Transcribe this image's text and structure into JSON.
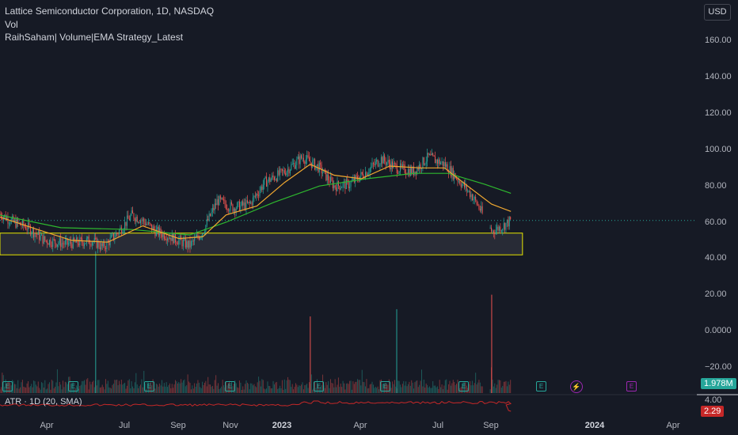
{
  "legend": {
    "title": "Lattice Semiconductor Corporation, 1D, NASDAQ",
    "vol": "Vol",
    "strategy": "RaihSaham| Volume|EMA Strategy_Latest"
  },
  "currency": "USD",
  "price_axis": [
    "160.00",
    "140.00",
    "120.00",
    "100.00",
    "80.00",
    "60.00",
    "40.00",
    "20.00",
    "0.0000",
    "−20.00"
  ],
  "atr_axis": "4.00",
  "badges": {
    "volume": "1.978M",
    "atr": "2.29"
  },
  "atr_legend": "ATR · 1D (20, SMA)",
  "time_axis": [
    "Apr",
    "Jul",
    "Sep",
    "Nov",
    "2023",
    "Apr",
    "Jul",
    "Sep",
    "2024",
    "Apr"
  ],
  "earnings_icon": "E",
  "dividend_icon": "lightning-icon",
  "colors": {
    "up": "#26a69a",
    "down": "#ef5350",
    "ema_fast": "#f0a830",
    "ema_slow": "#2eb82e",
    "zone": "#e6e600",
    "atr": "#c62828",
    "volume_badge": "#26a69a",
    "atr_badge": "#c62828"
  },
  "chart_data": {
    "type": "candlestick",
    "x_range": [
      "2022-02",
      "2024-05"
    ],
    "ylim": [
      -20,
      170
    ],
    "price_path": [
      [
        "2022-02-10",
        65
      ],
      [
        "2022-03-01",
        60
      ],
      [
        "2022-03-20",
        57
      ],
      [
        "2022-04-10",
        50
      ],
      [
        "2022-05-10",
        48
      ],
      [
        "2022-06-10",
        50
      ],
      [
        "2022-06-25",
        46
      ],
      [
        "2022-07-15",
        55
      ],
      [
        "2022-08-01",
        64
      ],
      [
        "2022-08-15",
        61
      ],
      [
        "2022-09-01",
        55
      ],
      [
        "2022-09-20",
        52
      ],
      [
        "2022-10-15",
        47
      ],
      [
        "2022-11-01",
        55
      ],
      [
        "2022-11-20",
        72
      ],
      [
        "2022-12-10",
        68
      ],
      [
        "2023-01-01",
        70
      ],
      [
        "2023-01-20",
        82
      ],
      [
        "2023-02-15",
        88
      ],
      [
        "2023-03-10",
        96
      ],
      [
        "2023-04-01",
        90
      ],
      [
        "2023-04-20",
        80
      ],
      [
        "2023-05-10",
        81
      ],
      [
        "2023-06-01",
        88
      ],
      [
        "2023-06-20",
        95
      ],
      [
        "2023-07-10",
        90
      ],
      [
        "2023-08-01",
        88
      ],
      [
        "2023-08-20",
        96
      ],
      [
        "2023-09-10",
        92
      ],
      [
        "2023-09-25",
        85
      ],
      [
        "2023-10-15",
        75
      ],
      [
        "2023-10-25",
        68
      ],
      [
        "2023-11-10",
        55
      ],
      [
        "2023-11-25",
        58
      ],
      [
        "2023-12-05",
        61
      ]
    ],
    "ema_fast": [
      [
        "2022-02-10",
        63
      ],
      [
        "2022-04-01",
        56
      ],
      [
        "2022-05-15",
        50
      ],
      [
        "2022-07-01",
        49
      ],
      [
        "2022-08-15",
        58
      ],
      [
        "2022-10-01",
        51
      ],
      [
        "2022-11-01",
        52
      ],
      [
        "2022-12-01",
        64
      ],
      [
        "2023-01-10",
        69
      ],
      [
        "2023-02-15",
        82
      ],
      [
        "2023-03-20",
        92
      ],
      [
        "2023-04-20",
        86
      ],
      [
        "2023-05-25",
        84
      ],
      [
        "2023-07-01",
        91
      ],
      [
        "2023-08-10",
        90
      ],
      [
        "2023-09-10",
        90
      ],
      [
        "2023-10-10",
        80
      ],
      [
        "2023-11-10",
        70
      ],
      [
        "2023-12-05",
        66
      ]
    ],
    "ema_slow": [
      [
        "2022-02-10",
        64
      ],
      [
        "2022-05-01",
        57
      ],
      [
        "2022-08-01",
        56
      ],
      [
        "2022-10-15",
        53
      ],
      [
        "2022-12-01",
        60
      ],
      [
        "2023-02-01",
        71
      ],
      [
        "2023-04-01",
        80
      ],
      [
        "2023-06-01",
        84
      ],
      [
        "2023-08-01",
        87
      ],
      [
        "2023-09-15",
        87
      ],
      [
        "2023-11-01",
        81
      ],
      [
        "2023-12-05",
        76
      ]
    ],
    "demand_zone": {
      "low": 42,
      "high": 54,
      "start": "2022-02-01",
      "end": "2023-12-20"
    },
    "volume_spikes": [
      [
        "2022-06-15",
        44
      ],
      [
        "2023-03-20",
        8
      ],
      [
        "2023-07-10",
        12
      ],
      [
        "2023-11-10",
        20
      ]
    ],
    "atr_last": 2.29,
    "volume_last": "1.978M"
  }
}
